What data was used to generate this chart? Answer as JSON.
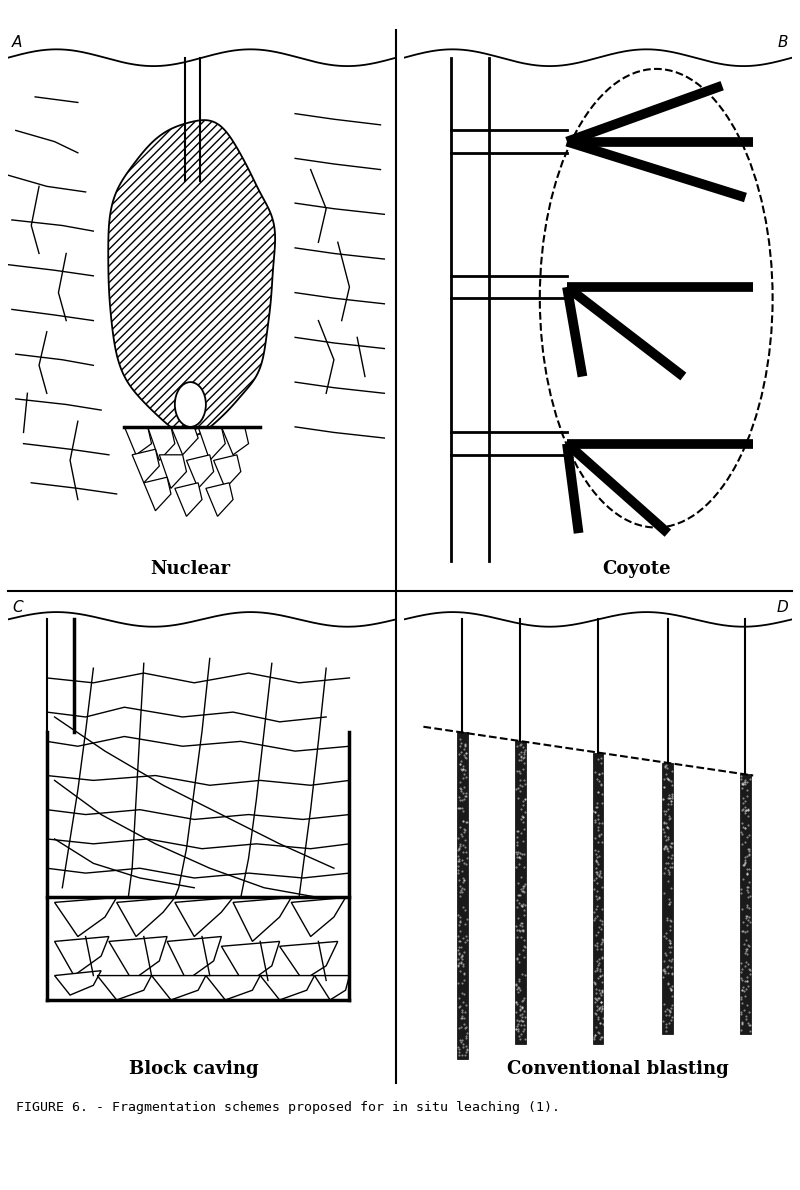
{
  "title": "FIGURE 6. - Fragmentation schemes proposed for in situ leaching (1).",
  "panel_labels": [
    "A",
    "B",
    "C",
    "D"
  ],
  "panel_titles": [
    "Nuclear",
    "Coyote",
    "Block caving",
    "Conventional blasting"
  ],
  "bg_color": "#ffffff",
  "line_color": "#000000",
  "figsize": [
    8.0,
    11.9
  ],
  "dpi": 100
}
